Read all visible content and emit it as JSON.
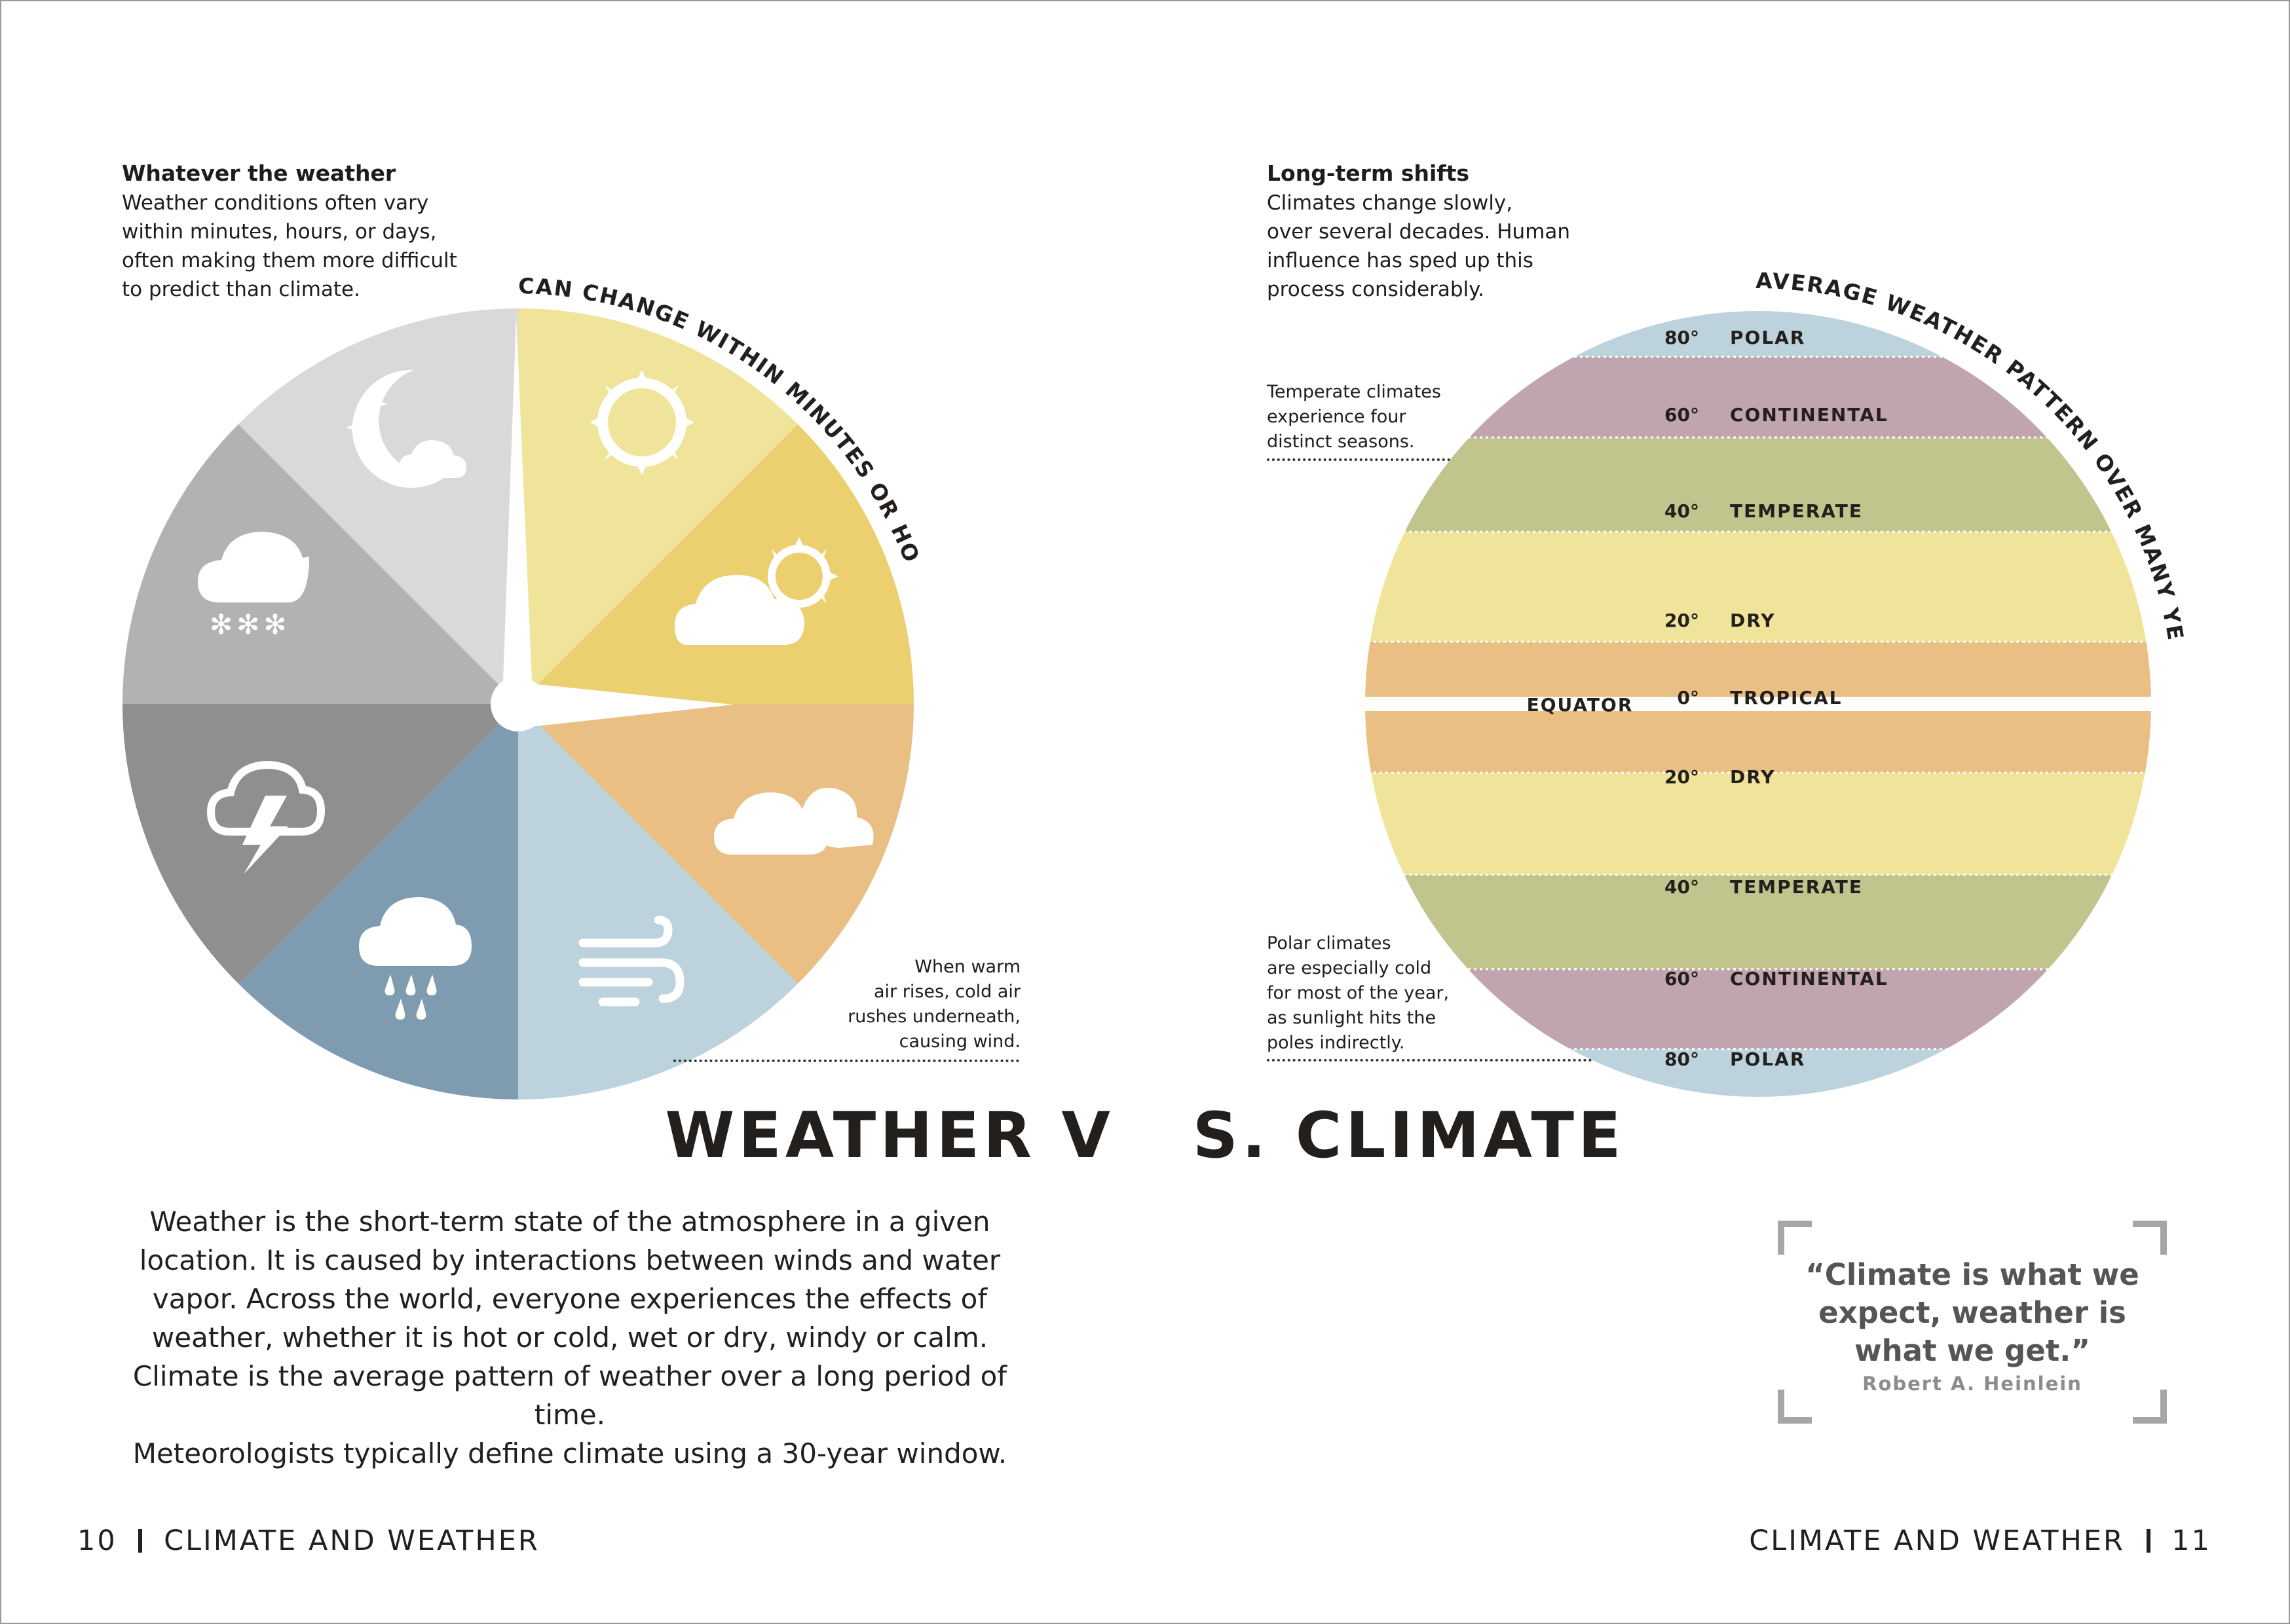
{
  "weather_note": {
    "heading": "Whatever the weather",
    "lines": [
      "Weather conditions often vary",
      "within minutes, hours, or days,",
      "often making them more difficult",
      "to predict than climate."
    ]
  },
  "climate_note": {
    "heading": "Long-term shifts",
    "lines": [
      "Climates change slowly,",
      "over several decades. Human",
      "influence has sped up this",
      "process considerably."
    ]
  },
  "wheel": {
    "arc_label": "CAN CHANGE WITHIN MINUTES OR HOURS",
    "segments": [
      {
        "icon": "sun-icon",
        "color": "#efe49a"
      },
      {
        "icon": "sun-behind-cloud-icon",
        "color": "#eccf6e"
      },
      {
        "icon": "cloudy-icon",
        "color": "#e9bf83"
      },
      {
        "icon": "wind-icon",
        "color": "#bcd2dd"
      },
      {
        "icon": "rain-cloud-icon",
        "color": "#7f9bb0"
      },
      {
        "icon": "thunderstorm-icon",
        "color": "#8f8f8f"
      },
      {
        "icon": "snow-cloud-icon",
        "color": "#b2b2b2"
      },
      {
        "icon": "moon-cloud-icon",
        "color": "#d9d9d9"
      }
    ],
    "wind_note": [
      "When warm",
      "air rises, cold air",
      "rushes underneath,",
      "causing wind."
    ]
  },
  "globe": {
    "arc_label": "AVERAGE WEATHER PATTERN OVER MANY YEARS",
    "equator_label": "EQUATOR",
    "bands": [
      {
        "lat": "80°",
        "zone": "POLAR",
        "color": "#bcd2dd"
      },
      {
        "lat": "60°",
        "zone": "CONTINENTAL",
        "color": "#c0a4b0"
      },
      {
        "lat": "40°",
        "zone": "TEMPERATE",
        "color": "#c1c48c"
      },
      {
        "lat": "20°",
        "zone": "DRY",
        "color": "#efe49a"
      },
      {
        "lat": "0°",
        "zone": "TROPICAL",
        "color": "#e9bf83"
      },
      {
        "lat": "20°",
        "zone": "DRY",
        "color": "#efe49a"
      },
      {
        "lat": "40°",
        "zone": "TEMPERATE",
        "color": "#c1c48c"
      },
      {
        "lat": "60°",
        "zone": "CONTINENTAL",
        "color": "#c0a4b0"
      },
      {
        "lat": "80°",
        "zone": "POLAR",
        "color": "#bcd2dd"
      }
    ],
    "temperate_note": [
      "Temperate climates",
      "experience four",
      "distinct seasons."
    ],
    "polar_note": [
      "Polar climates",
      "are especially cold",
      "for most of the year,",
      "as sunlight hits the",
      "poles indirectly."
    ]
  },
  "title": {
    "left": "WEATHER V",
    "right": "S. CLIMATE"
  },
  "body_lines": [
    "Weather is the short-term state of the atmosphere in a given",
    "location. It is caused by interactions between winds and water",
    "vapor. Across the world, everyone experiences the effects of",
    "weather, whether it is hot or cold, wet or dry, windy or calm.",
    "Climate is the average pattern of weather over a long period of time.",
    "Meteorologists typically define climate using a 30-year window."
  ],
  "quote": {
    "lines": [
      "“Climate is what we",
      "expect, weather is",
      "what we get.”"
    ],
    "author": "Robert A. Heinlein"
  },
  "footer": {
    "left_page": "10",
    "left_title": "CLIMATE AND WEATHER",
    "right_title": "CLIMATE AND WEATHER",
    "right_page": "11"
  }
}
